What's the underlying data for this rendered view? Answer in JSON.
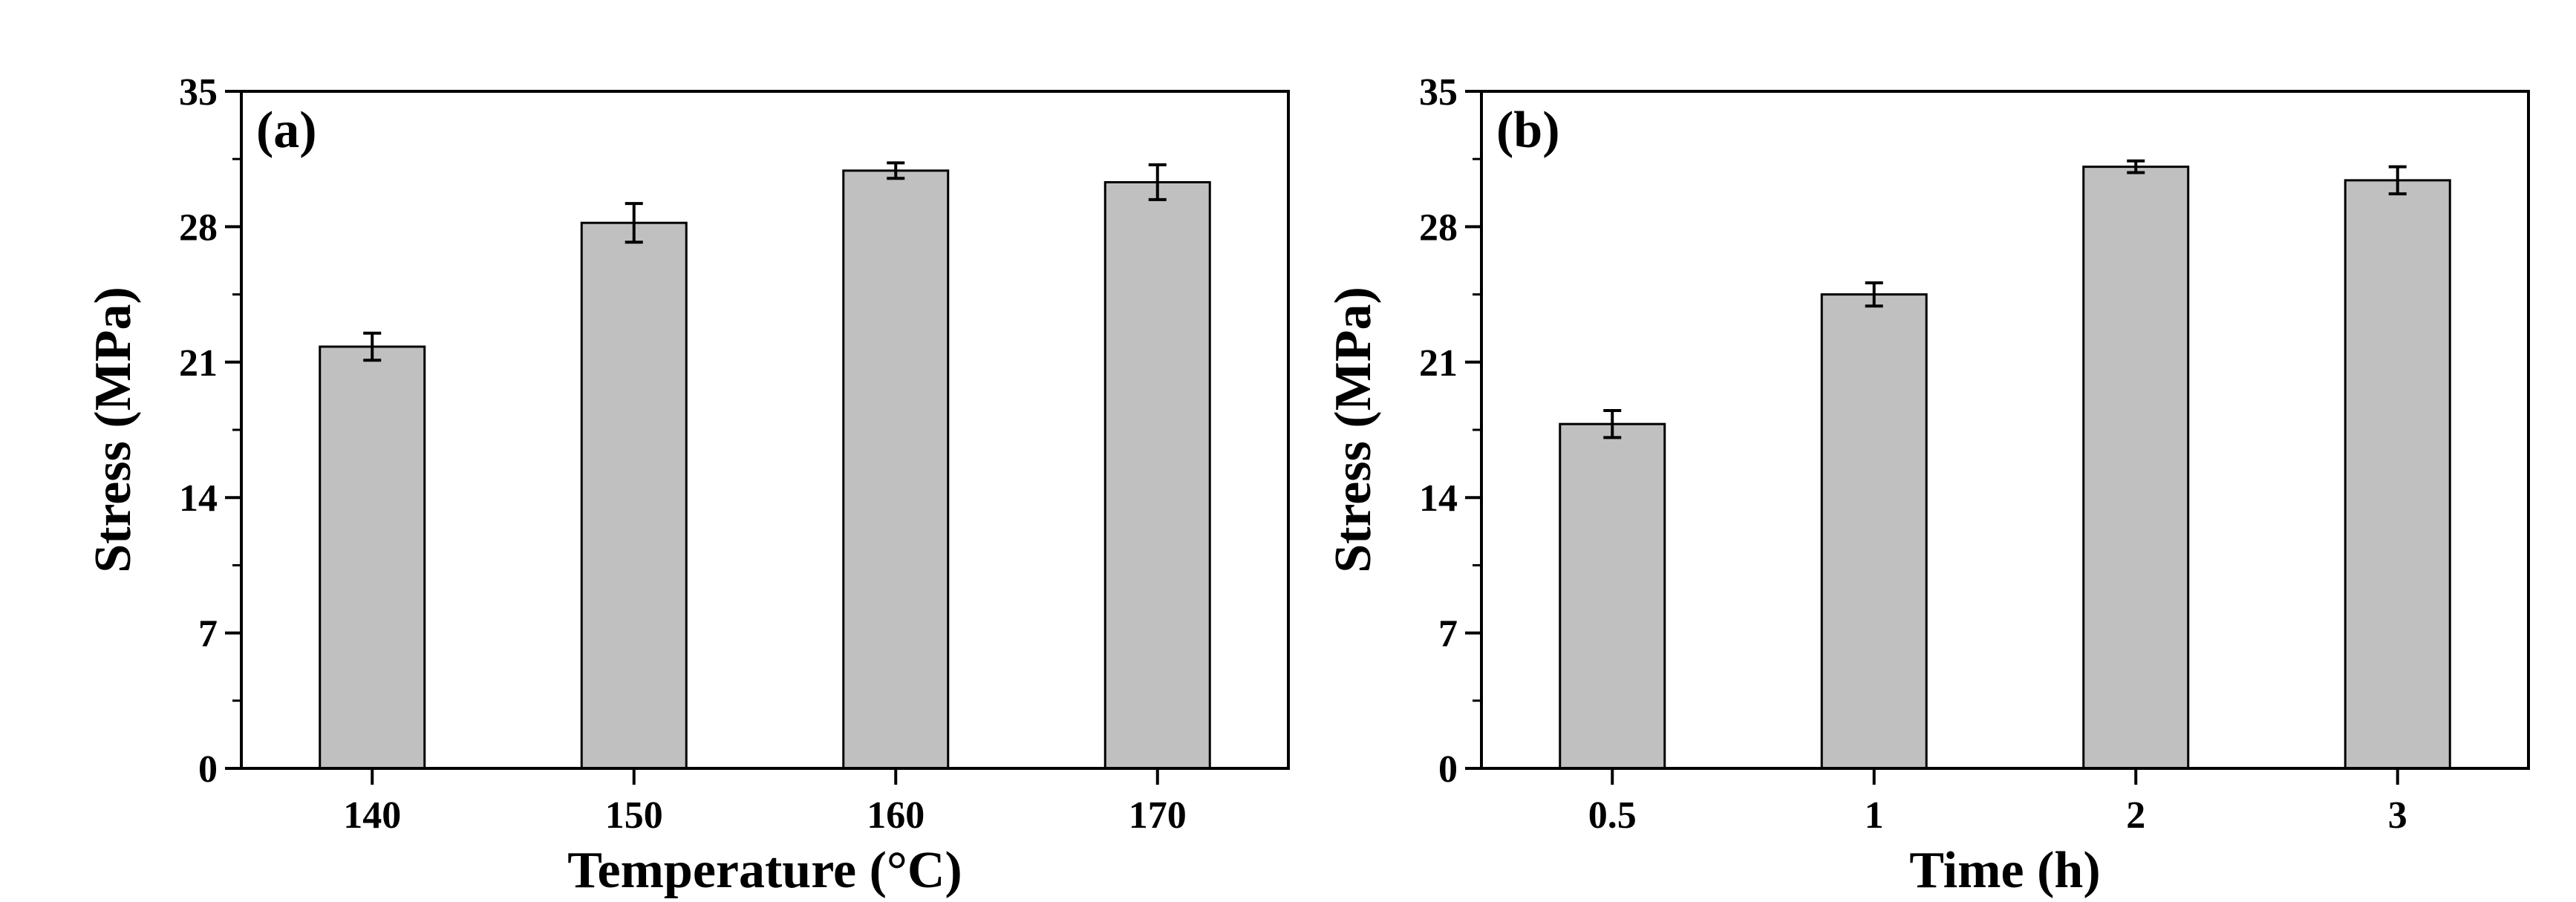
{
  "colors": {
    "bar_fill": "#c0c0c0",
    "bar_stroke": "#000000",
    "axis": "#000000",
    "background": "#ffffff"
  },
  "chart_data": [
    {
      "type": "bar",
      "panel_label": "(a)",
      "categories": [
        "140",
        "150",
        "160",
        "170"
      ],
      "values": [
        21.8,
        28.2,
        30.9,
        30.3
      ],
      "errors": [
        0.7,
        1.0,
        0.4,
        0.9
      ],
      "xlabel": "Temperature (°C)",
      "ylabel": "Stress (MPa)",
      "ylim": [
        0,
        35
      ],
      "yticks": [
        "0",
        "7",
        "14",
        "21",
        "28",
        "35"
      ],
      "ytick_values": [
        0,
        7,
        14,
        21,
        28,
        35
      ],
      "grid": false,
      "legend": "none"
    },
    {
      "type": "bar",
      "panel_label": "(b)",
      "categories": [
        "0.5",
        "1",
        "2",
        "3"
      ],
      "values": [
        17.8,
        24.5,
        31.1,
        30.4
      ],
      "errors": [
        0.7,
        0.6,
        0.3,
        0.7
      ],
      "xlabel": "Time (h)",
      "ylabel": "Stress (MPa)",
      "ylim": [
        0,
        35
      ],
      "yticks": [
        "0",
        "7",
        "14",
        "21",
        "28",
        "35"
      ],
      "ytick_values": [
        0,
        7,
        14,
        21,
        28,
        35
      ],
      "grid": false,
      "legend": "none"
    }
  ]
}
